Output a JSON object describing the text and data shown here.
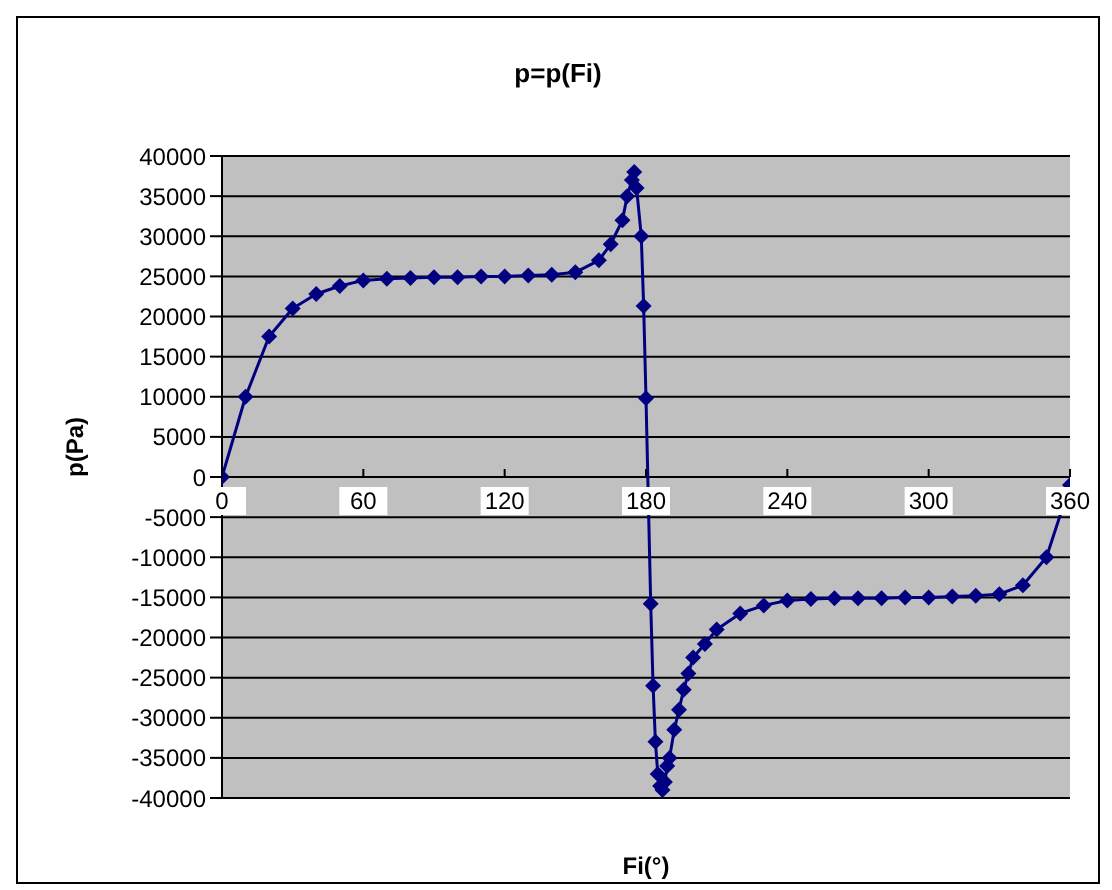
{
  "chart_data": {
    "type": "line",
    "title": "p=p(Fi)",
    "xlabel": "Fi(°)",
    "ylabel": "p(Pa)",
    "x": [
      0,
      10,
      20,
      30,
      40,
      50,
      60,
      70,
      80,
      90,
      100,
      110,
      120,
      130,
      140,
      150,
      160,
      165,
      170,
      172,
      174,
      175,
      176,
      178,
      179,
      180,
      182,
      183,
      184,
      185,
      186,
      187,
      188,
      189,
      190,
      192,
      194,
      196,
      198,
      200,
      205,
      210,
      220,
      230,
      240,
      250,
      260,
      270,
      280,
      290,
      300,
      310,
      320,
      330,
      340,
      350,
      360
    ],
    "series": [
      {
        "color": "#000080",
        "values": [
          0,
          10000,
          17500,
          21000,
          22800,
          23800,
          24500,
          24700,
          24800,
          24900,
          24900,
          25000,
          25000,
          25100,
          25200,
          25500,
          27000,
          29000,
          32000,
          35000,
          37000,
          38000,
          36000,
          30000,
          21300,
          9800,
          -15800,
          -26000,
          -33000,
          -37000,
          -38500,
          -39000,
          -38000,
          -36000,
          -35000,
          -31500,
          -29000,
          -26500,
          -24500,
          -22500,
          -20800,
          -19000,
          -17000,
          -16000,
          -15400,
          -15200,
          -15100,
          -15100,
          -15100,
          -15000,
          -15000,
          -14900,
          -14800,
          -14600,
          -13500,
          -10000,
          -1000
        ]
      }
    ],
    "xlim": [
      0,
      360
    ],
    "xticks": [
      0,
      60,
      120,
      180,
      240,
      300,
      360
    ],
    "ylim": [
      -40000,
      40000
    ],
    "yticks": [
      -40000,
      -35000,
      -30000,
      -25000,
      -20000,
      -15000,
      -10000,
      -5000,
      0,
      5000,
      10000,
      15000,
      20000,
      25000,
      30000,
      35000,
      40000
    ],
    "grid": "y",
    "legend": false,
    "marker": "diamond",
    "line_style": "solid"
  }
}
